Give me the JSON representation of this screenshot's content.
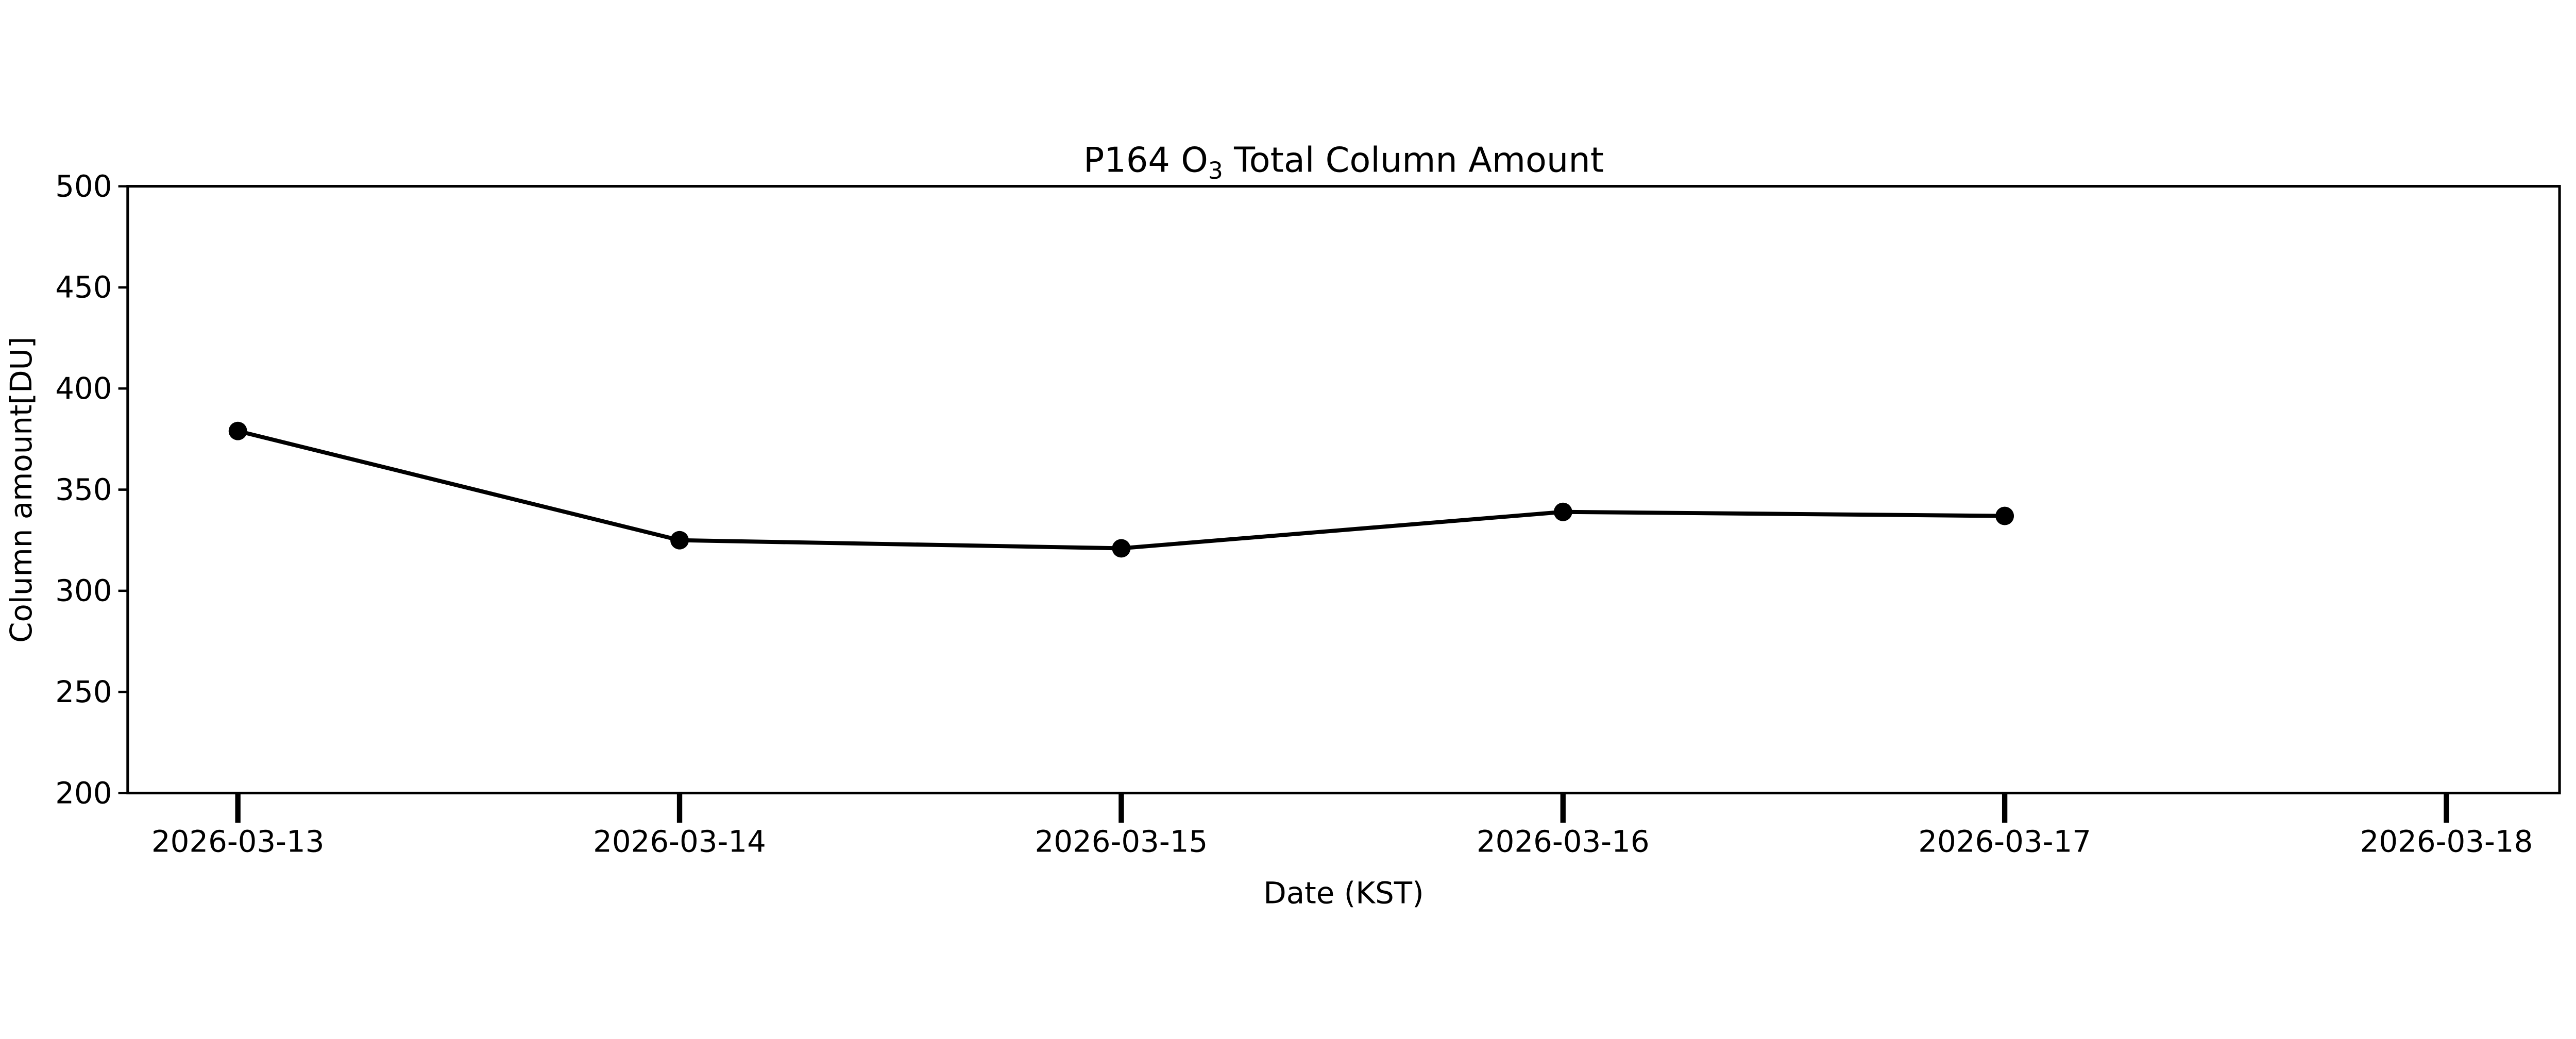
{
  "chart_data": {
    "type": "line",
    "title": "P164 O3 Total Column Amount",
    "title_parts": {
      "prefix": "P164 O",
      "sub": "3",
      "suffix": " Total Column Amount"
    },
    "xlabel": "Date (KST)",
    "ylabel": "Column amount[DU]",
    "x": [
      "2026-03-13",
      "2026-03-14",
      "2026-03-15",
      "2026-03-16",
      "2026-03-17"
    ],
    "values": [
      379,
      325,
      321,
      339,
      337
    ],
    "x_tick_labels": [
      "2026-03-13",
      "2026-03-14",
      "2026-03-15",
      "2026-03-16",
      "2026-03-17",
      "2026-03-18"
    ],
    "yticks": [
      200,
      250,
      300,
      350,
      400,
      450,
      500
    ],
    "ylim": [
      200,
      500
    ],
    "grid": false,
    "legend": "none",
    "marker": "circle",
    "line_color": "#000000",
    "background": "#ffffff"
  }
}
